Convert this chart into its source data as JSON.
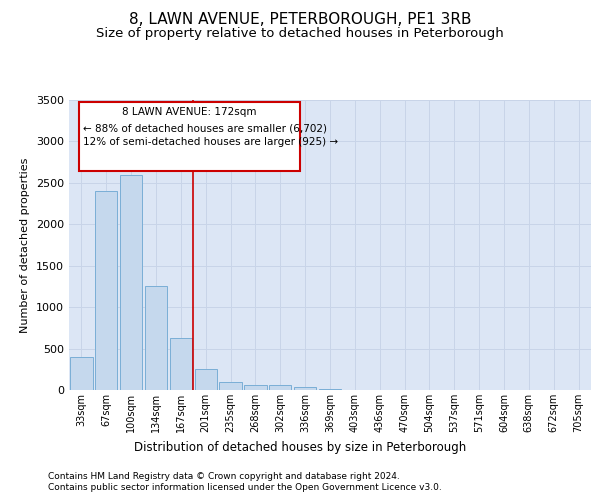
{
  "title": "8, LAWN AVENUE, PETERBOROUGH, PE1 3RB",
  "subtitle": "Size of property relative to detached houses in Peterborough",
  "xlabel": "Distribution of detached houses by size in Peterborough",
  "ylabel": "Number of detached properties",
  "footnote1": "Contains HM Land Registry data © Crown copyright and database right 2024.",
  "footnote2": "Contains public sector information licensed under the Open Government Licence v3.0.",
  "categories": [
    "33sqm",
    "67sqm",
    "100sqm",
    "134sqm",
    "167sqm",
    "201sqm",
    "235sqm",
    "268sqm",
    "302sqm",
    "336sqm",
    "369sqm",
    "403sqm",
    "436sqm",
    "470sqm",
    "504sqm",
    "537sqm",
    "571sqm",
    "604sqm",
    "638sqm",
    "672sqm",
    "705sqm"
  ],
  "values": [
    400,
    2400,
    2600,
    1250,
    630,
    250,
    100,
    65,
    55,
    35,
    10,
    5,
    2,
    0,
    0,
    0,
    0,
    0,
    0,
    0,
    0
  ],
  "bar_color": "#c5d8ed",
  "bar_edge_color": "#7aaed6",
  "annotation_line1": "8 LAWN AVENUE: 172sqm",
  "annotation_line2": "← 88% of detached houses are smaller (6,702)",
  "annotation_line3": "12% of semi-detached houses are larger (925) →",
  "annotation_box_color": "#ffffff",
  "annotation_box_edge": "#cc0000",
  "red_line_index": 4.48,
  "ylim": [
    0,
    3500
  ],
  "yticks": [
    0,
    500,
    1000,
    1500,
    2000,
    2500,
    3000,
    3500
  ],
  "grid_color": "#c8d4e8",
  "background_color": "#dce6f5",
  "title_fontsize": 11,
  "subtitle_fontsize": 9.5,
  "footnote_fontsize": 6.5
}
